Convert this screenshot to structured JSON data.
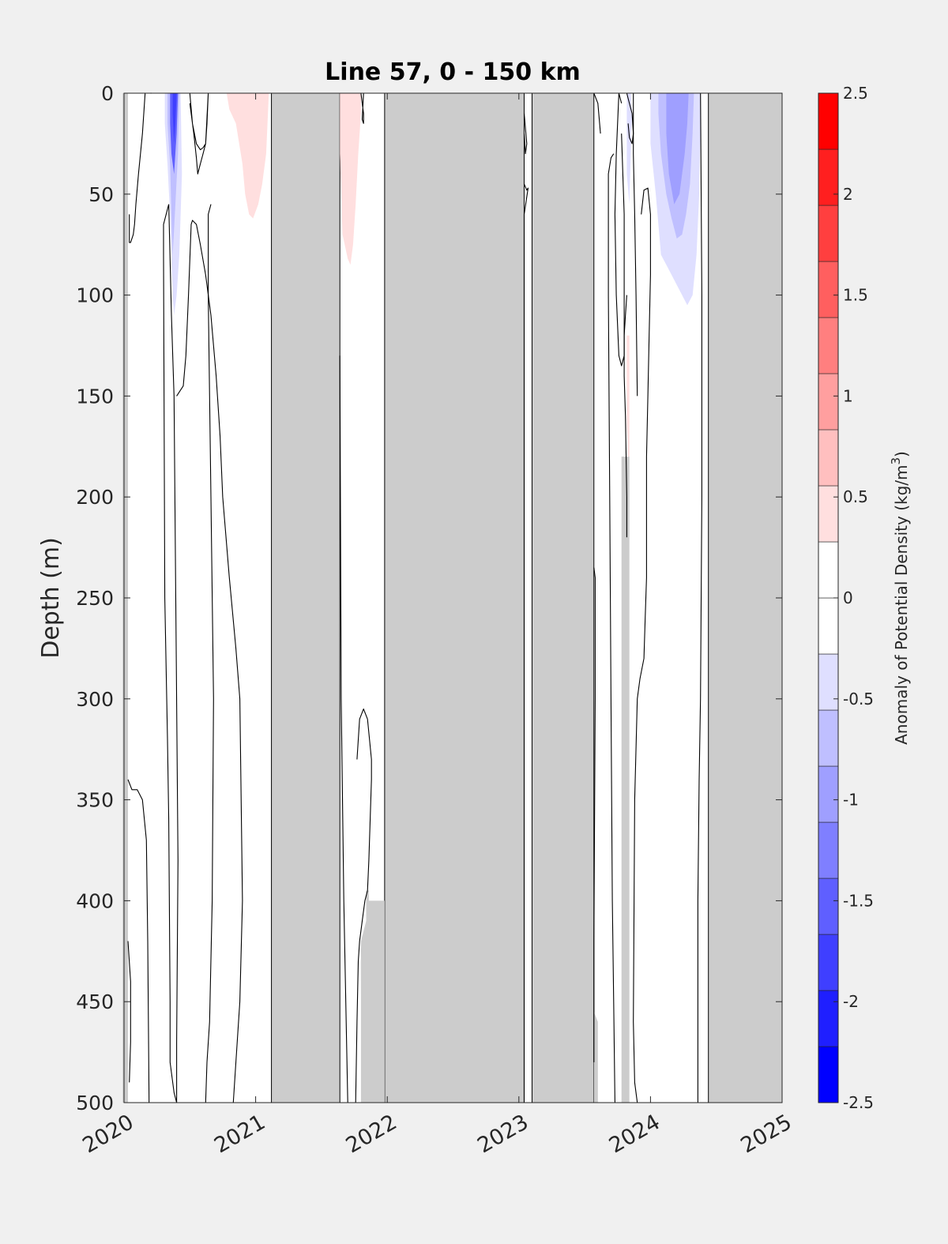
{
  "chart_data": {
    "type": "heatmap",
    "title": "Line 57, 0 - 150 km",
    "ylabel": "Depth (m)",
    "colorbar_label": "Anomaly of Potential Density",
    "colorbar_unit_base": "(kg/m",
    "colorbar_unit_exp": "3",
    "colorbar_unit_close": ")",
    "xlim": [
      2020,
      2025
    ],
    "ylim": [
      0,
      500
    ],
    "y_reversed": true,
    "x_ticks": [
      "2020",
      "2021",
      "2022",
      "2023",
      "2024",
      "2025"
    ],
    "y_ticks": [
      "0",
      "50",
      "100",
      "150",
      "200",
      "250",
      "300",
      "350",
      "400",
      "450",
      "500"
    ],
    "colorbar_ticks": [
      "2.5",
      "2",
      "1.5",
      "1",
      "0.5",
      "0",
      "-0.5",
      "-1",
      "-1.5",
      "-2",
      "-2.5"
    ],
    "clim": [
      -2.5,
      2.5
    ],
    "color_levels": [
      "#0000ff",
      "#1f1fff",
      "#3f3fff",
      "#5f5fff",
      "#7f7fff",
      "#9f9fff",
      "#bfbfff",
      "#dfdfff",
      "#ffffff",
      "#ffffff",
      "#ffdfdf",
      "#ffbfbf",
      "#ff9f9f",
      "#ff7f7f",
      "#ff5f5f",
      "#ff3f3f",
      "#ff1f1f",
      "#ff0000"
    ],
    "no_data_color": "#cccccc",
    "no_data_periods": [
      {
        "start": 2021.12,
        "end": 2021.64
      },
      {
        "start": 2021.98,
        "end": 2023.04
      },
      {
        "start": 2023.1,
        "end": 2023.57
      },
      {
        "start": 2024.44,
        "end": 2025.0
      }
    ],
    "no_data_regions": [
      {
        "x": [
          2019.99,
          2020.03,
          2020.03,
          2019.99
        ],
        "y": [
          0,
          0,
          500,
          500
        ]
      },
      {
        "x": [
          2021.8,
          2021.8,
          2021.84,
          2021.84,
          2021.86,
          2021.86,
          2021.98,
          2021.98
        ],
        "y": [
          500,
          420,
          410,
          395,
          395,
          400,
          400,
          500
        ]
      },
      {
        "x": [
          2023.57,
          2023.6,
          2023.6,
          2023.57
        ],
        "y": [
          455,
          460,
          500,
          500
        ]
      },
      {
        "x": [
          2023.78,
          2023.78,
          2023.84,
          2023.84,
          2023.78
        ],
        "y": [
          180,
          180,
          180,
          500,
          500
        ]
      }
    ],
    "anomaly_regions": [
      {
        "value": -0.4,
        "x": [
          2020.31,
          2020.33,
          2020.37,
          2020.41,
          2020.43,
          2020.44,
          2020.42,
          2020.4,
          2020.38,
          2020.37,
          2020.35,
          2020.33,
          2020.31
        ],
        "y": [
          0,
          0,
          0,
          0,
          0,
          40,
          80,
          100,
          110,
          100,
          60,
          35,
          15
        ]
      },
      {
        "value": -0.7,
        "x": [
          2020.33,
          2020.35,
          2020.4,
          2020.42,
          2020.41,
          2020.39,
          2020.37,
          2020.36,
          2020.35,
          2020.33
        ],
        "y": [
          0,
          0,
          0,
          0,
          30,
          55,
          80,
          60,
          35,
          15
        ]
      },
      {
        "value": -1.4,
        "x": [
          2020.35,
          2020.37,
          2020.39,
          2020.41,
          2020.4,
          2020.38,
          2020.36,
          2020.35
        ],
        "y": [
          0,
          0,
          0,
          0,
          20,
          40,
          30,
          15
        ]
      },
      {
        "value": -1.9,
        "x": [
          2020.37,
          2020.38,
          2020.4,
          2020.39,
          2020.38,
          2020.37
        ],
        "y": [
          0,
          0,
          0,
          15,
          25,
          10
        ]
      },
      {
        "value": 0.4,
        "x": [
          2020.78,
          2020.85,
          2021.0,
          2021.08,
          2021.1,
          2021.08,
          2021.05,
          2021.02,
          2020.98,
          2020.95,
          2020.92,
          2020.9,
          2020.85,
          2020.8,
          2020.78
        ],
        "y": [
          0,
          0,
          0,
          0,
          0,
          30,
          45,
          55,
          62,
          60,
          50,
          35,
          15,
          8,
          0
        ]
      },
      {
        "value": 0.4,
        "x": [
          2021.64,
          2021.72,
          2021.8,
          2021.8,
          2021.78,
          2021.76,
          2021.74,
          2021.72,
          2021.7,
          2021.66,
          2021.64
        ],
        "y": [
          0,
          0,
          0,
          10,
          30,
          55,
          75,
          85,
          82,
          70,
          30
        ]
      },
      {
        "value": -0.4,
        "x": [
          2023.82,
          2023.85,
          2023.86,
          2023.85,
          2023.84,
          2023.82
        ],
        "y": [
          0,
          0,
          10,
          30,
          55,
          40
        ]
      },
      {
        "value": 0.4,
        "x": [
          2023.82,
          2023.84,
          2023.84,
          2023.83,
          2023.82
        ],
        "y": [
          120,
          120,
          180,
          180,
          165
        ]
      },
      {
        "value": -0.4,
        "x": [
          2024.0,
          2024.1,
          2024.3,
          2024.38,
          2024.38,
          2024.37,
          2024.35,
          2024.32,
          2024.28,
          2024.24,
          2024.2,
          2024.16,
          2024.12,
          2024.08,
          2024.04,
          2024.0
        ],
        "y": [
          0,
          0,
          0,
          0,
          20,
          50,
          80,
          100,
          105,
          100,
          95,
          90,
          85,
          80,
          50,
          25
        ]
      },
      {
        "value": -0.7,
        "x": [
          2024.06,
          2024.12,
          2024.3,
          2024.33,
          2024.32,
          2024.3,
          2024.27,
          2024.24,
          2024.2,
          2024.16,
          2024.12,
          2024.08,
          2024.06
        ],
        "y": [
          0,
          0,
          0,
          0,
          20,
          45,
          60,
          70,
          72,
          62,
          50,
          30,
          10
        ]
      },
      {
        "value": -0.9,
        "x": [
          2024.12,
          2024.18,
          2024.26,
          2024.29,
          2024.28,
          2024.26,
          2024.22,
          2024.18,
          2024.14,
          2024.12
        ],
        "y": [
          0,
          0,
          0,
          0,
          15,
          30,
          50,
          55,
          40,
          20
        ]
      }
    ],
    "contours": [
      {
        "level": 0,
        "x": [
          2020.16,
          2020.14,
          2020.11,
          2020.09,
          2020.08,
          2020.07,
          2020.05,
          2020.04,
          2020.04
        ],
        "y": [
          0,
          20,
          40,
          55,
          65,
          70,
          74,
          74,
          60
        ]
      },
      {
        "level": 0,
        "x": [
          2020.2,
          2020.21
        ],
        "y": [
          0,
          0
        ]
      },
      {
        "level": 0,
        "x": [
          2020.5,
          2020.52,
          2020.55,
          2020.58,
          2020.6,
          2020.62,
          2020.63,
          2020.64,
          2020.62,
          2020.6,
          2020.58,
          2020.56,
          2020.55,
          2020.53,
          2020.5
        ],
        "y": [
          0,
          15,
          25,
          28,
          27,
          25,
          15,
          0,
          25,
          30,
          35,
          40,
          32,
          20,
          5
        ]
      },
      {
        "level": 0,
        "x": [
          2020.34,
          2020.32,
          2020.3,
          2020.3,
          2020.31,
          2020.33,
          2020.34,
          2020.35,
          2020.35,
          2020.38,
          2020.4,
          2020.4,
          2020.41,
          2020.38,
          2020.36,
          2020.34
        ],
        "y": [
          55,
          60,
          65,
          80,
          250,
          320,
          360,
          450,
          480,
          495,
          500,
          470,
          380,
          150,
          110,
          55
        ]
      },
      {
        "level": 0,
        "x": [
          2020.4,
          2020.45,
          2020.47,
          2020.49,
          2020.51,
          2020.52,
          2020.55,
          2020.58,
          2020.62,
          2020.66,
          2020.7,
          2020.73,
          2020.75,
          2020.8,
          2020.85,
          2020.88,
          2020.9,
          2020.88,
          2020.85,
          2020.83
        ],
        "y": [
          150,
          145,
          130,
          100,
          65,
          63,
          65,
          75,
          90,
          110,
          140,
          170,
          200,
          240,
          275,
          300,
          400,
          450,
          480,
          500
        ]
      },
      {
        "level": 0,
        "x": [
          2020.62,
          2020.63,
          2020.65,
          2020.67,
          2020.68,
          2020.66,
          2020.65,
          2020.64,
          2020.64,
          2020.66
        ],
        "y": [
          500,
          480,
          460,
          400,
          300,
          200,
          150,
          100,
          60,
          55
        ]
      },
      {
        "level": 0,
        "x": [
          2020.03,
          2020.06,
          2020.1,
          2020.14,
          2020.17,
          2020.18,
          2020.19
        ],
        "y": [
          340,
          345,
          345,
          350,
          370,
          420,
          500
        ]
      },
      {
        "level": 0,
        "x": [
          2020.03,
          2020.05,
          2020.05,
          2020.04
        ],
        "y": [
          420,
          440,
          470,
          490
        ]
      },
      {
        "level": 0,
        "x": [
          2021.64,
          2021.65,
          2021.67,
          2021.7
        ],
        "y": [
          130,
          300,
          400,
          500
        ]
      },
      {
        "level": 0,
        "x": [
          2021.8,
          2021.81,
          2021.82,
          2021.82,
          2021.81,
          2021.82
        ],
        "y": [
          0,
          5,
          10,
          15,
          13,
          0
        ]
      },
      {
        "level": 0,
        "x": [
          2021.76,
          2021.77,
          2021.78,
          2021.79,
          2021.81,
          2021.83,
          2021.85,
          2021.86,
          2021.88,
          2021.88,
          2021.85,
          2021.82,
          2021.79,
          2021.77
        ],
        "y": [
          500,
          460,
          430,
          420,
          410,
          400,
          395,
          380,
          340,
          330,
          310,
          305,
          310,
          330
        ]
      },
      {
        "level": 0,
        "x": [
          2023.04,
          2023.06,
          2023.05,
          2023.04
        ],
        "y": [
          10,
          25,
          30,
          20
        ]
      },
      {
        "level": 0,
        "x": [
          2023.04,
          2023.06,
          2023.07,
          2023.04,
          2023.04,
          2023.04
        ],
        "y": [
          45,
          48,
          47,
          60,
          250,
          500
        ]
      },
      {
        "level": 0,
        "x": [
          2023.57,
          2023.6,
          2023.62
        ],
        "y": [
          0,
          5,
          20
        ]
      },
      {
        "level": 0,
        "x": [
          2023.57,
          2023.58,
          2023.58,
          2023.57,
          2023.57
        ],
        "y": [
          235,
          240,
          300,
          420,
          480
        ]
      },
      {
        "level": 0,
        "x": [
          2023.72,
          2023.7,
          2023.68,
          2023.68,
          2023.69,
          2023.7,
          2023.71,
          2023.72,
          2023.73
        ],
        "y": [
          30,
          32,
          40,
          100,
          200,
          300,
          400,
          450,
          500
        ]
      },
      {
        "level": 0,
        "x": [
          2023.78,
          2023.76,
          2023.74,
          2023.73,
          2023.74,
          2023.76,
          2023.78,
          2023.8,
          2023.8,
          2023.78
        ],
        "y": [
          5,
          0,
          30,
          60,
          100,
          130,
          135,
          130,
          60,
          20
        ]
      },
      {
        "level": 0,
        "x": [
          2023.82,
          2023.84,
          2023.86,
          2023.87,
          2023.86,
          2023.84,
          2023.83
        ],
        "y": [
          0,
          5,
          10,
          20,
          25,
          22,
          15
        ]
      },
      {
        "level": 0,
        "x": [
          2023.82,
          2023.81,
          2023.8,
          2023.8,
          2023.81,
          2023.82,
          2023.82
        ],
        "y": [
          100,
          110,
          120,
          140,
          160,
          200,
          220
        ]
      },
      {
        "level": 0,
        "x": [
          2023.9,
          2023.88,
          2023.87,
          2023.88,
          2023.9,
          2023.92,
          2023.95,
          2023.96,
          2023.97,
          2023.97,
          2023.98,
          2023.99,
          2024.0,
          2024.0,
          2023.98,
          2023.95,
          2023.93
        ],
        "y": [
          500,
          490,
          460,
          350,
          300,
          290,
          280,
          260,
          240,
          180,
          150,
          120,
          90,
          60,
          47,
          48,
          60
        ]
      },
      {
        "level": 0,
        "x": [
          2023.87,
          2023.87,
          2023.88,
          2023.89,
          2023.9
        ],
        "y": [
          0,
          30,
          60,
          100,
          150
        ]
      },
      {
        "level": 0,
        "x": [
          2024.38,
          2024.39,
          2024.39,
          2024.38,
          2024.37,
          2024.36,
          2024.36
        ],
        "y": [
          0,
          100,
          200,
          300,
          340,
          400,
          500
        ]
      }
    ]
  }
}
